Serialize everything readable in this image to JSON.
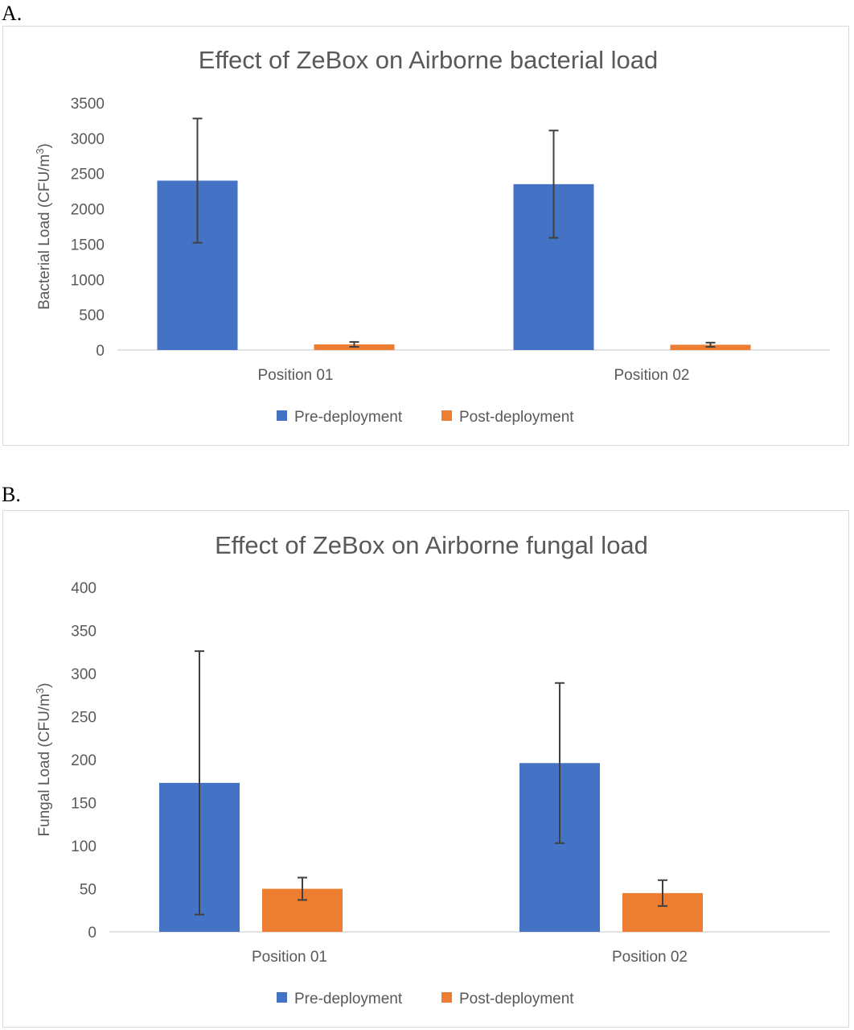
{
  "panels": {
    "a": {
      "letter": "A."
    },
    "b": {
      "letter": "B."
    }
  },
  "colors": {
    "pre": "#4472C4",
    "post": "#ED7D31",
    "error_bar": "#404040",
    "axis": "#d9d9d9"
  },
  "chart_data": [
    {
      "type": "bar",
      "title": "Effect of ZeBox on Airborne bacterial load",
      "xlabel": "",
      "ylabel": "Bacterial Load (CFU/m",
      "ylabel_sup": "3",
      "ylabel_end": ")",
      "categories": [
        "Position 01",
        "Position 02"
      ],
      "yticks": [
        "0",
        "500",
        "1000",
        "1500",
        "2000",
        "2500",
        "3000",
        "3500"
      ],
      "ylim": [
        0,
        3500
      ],
      "legend_position": "bottom",
      "series": [
        {
          "name": "Pre-deployment",
          "values": [
            2400,
            2350
          ],
          "error": [
            880,
            760
          ]
        },
        {
          "name": "Post-deployment",
          "values": [
            80,
            75
          ],
          "error": [
            35,
            30
          ]
        }
      ]
    },
    {
      "type": "bar",
      "title": "Effect of ZeBox on Airborne fungal load",
      "xlabel": "",
      "ylabel": "Fungal Load (CFU/m",
      "ylabel_sup": "3",
      "ylabel_end": ")",
      "categories": [
        "Position 01",
        "Position 02"
      ],
      "yticks": [
        "0",
        "50",
        "100",
        "150",
        "200",
        "250",
        "300",
        "350",
        "400"
      ],
      "ylim": [
        0,
        400
      ],
      "legend_position": "bottom",
      "series": [
        {
          "name": "Pre-deployment",
          "values": [
            173,
            196
          ],
          "error": [
            153,
            93
          ]
        },
        {
          "name": "Post-deployment",
          "values": [
            50,
            45
          ],
          "error": [
            13,
            15
          ]
        }
      ]
    }
  ]
}
